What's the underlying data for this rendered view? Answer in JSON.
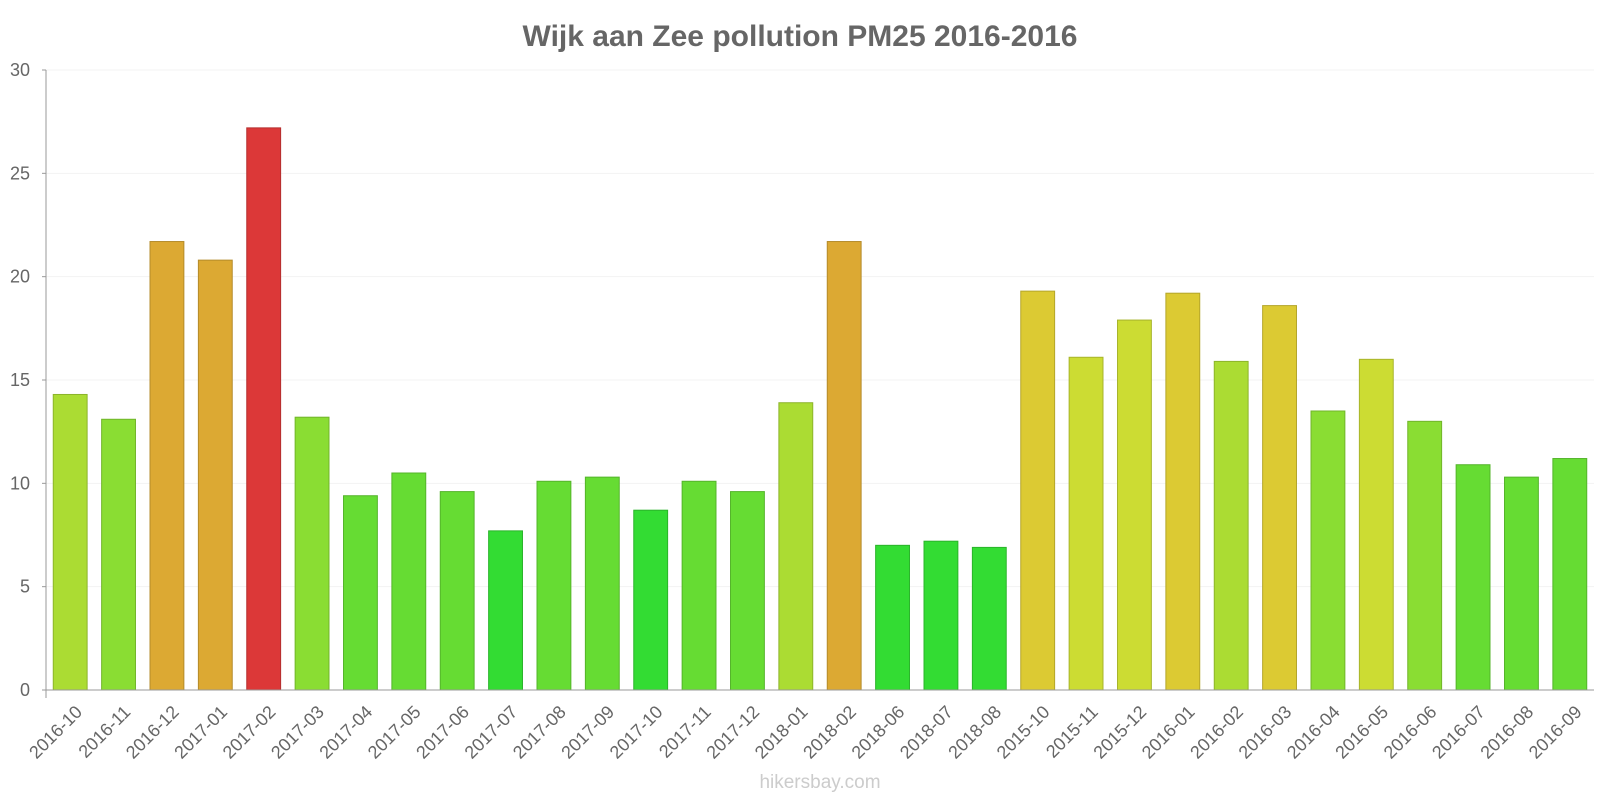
{
  "chart_data": {
    "type": "bar",
    "title": "Wijk aan Zee pollution PM25 2016-2016",
    "xlabel": "",
    "ylabel": "",
    "ylim": [
      0,
      30
    ],
    "yticks": [
      0,
      5,
      10,
      15,
      20,
      25,
      30
    ],
    "grid": true,
    "categories": [
      "2016-10",
      "2016-11",
      "2016-12",
      "2017-01",
      "2017-02",
      "2017-03",
      "2017-04",
      "2017-05",
      "2017-06",
      "2017-07",
      "2017-08",
      "2017-09",
      "2017-10",
      "2017-11",
      "2017-12",
      "2018-01",
      "2018-02",
      "2018-06",
      "2018-07",
      "2018-08",
      "2015-10",
      "2015-11",
      "2015-12",
      "2016-01",
      "2016-02",
      "2016-03",
      "2016-04",
      "2016-05",
      "2016-06",
      "2016-07",
      "2016-08",
      "2016-09"
    ],
    "values": [
      14.3,
      13.1,
      21.7,
      20.8,
      27.2,
      13.2,
      9.4,
      10.5,
      9.6,
      7.7,
      10.1,
      10.3,
      8.7,
      10.1,
      9.6,
      13.9,
      21.7,
      7.0,
      7.2,
      6.9,
      19.3,
      16.1,
      17.9,
      19.2,
      15.9,
      18.6,
      13.5,
      16.0,
      13.0,
      10.9,
      10.3,
      11.2
    ],
    "bar_colors": [
      "#abdc33",
      "#8add33",
      "#dca933",
      "#dca933",
      "#dc3838",
      "#8add33",
      "#66dc33",
      "#66dc33",
      "#66dc33",
      "#33dc33",
      "#66dc33",
      "#66dc33",
      "#33dc33",
      "#66dc33",
      "#66dc33",
      "#abdc33",
      "#dca933",
      "#33dc33",
      "#33dc33",
      "#33dc33",
      "#dcca33",
      "#ccdc33",
      "#ccdc33",
      "#dcca33",
      "#abdc33",
      "#dcca33",
      "#8add33",
      "#ccdc33",
      "#8add33",
      "#66dc33",
      "#66dc33",
      "#66dc33"
    ]
  },
  "watermark": "hikersbay.com"
}
